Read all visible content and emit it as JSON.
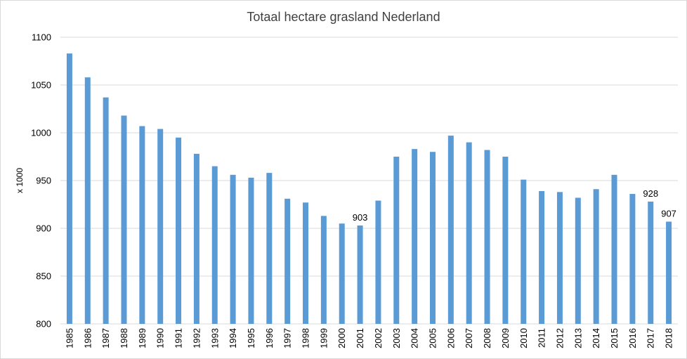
{
  "chart_data": {
    "type": "bar",
    "title": "Totaal hectare grasland Nederland",
    "xlabel": "",
    "ylabel": "x 1000",
    "ylim": [
      800,
      1100
    ],
    "yticks": [
      800,
      850,
      900,
      950,
      1000,
      1050,
      1100
    ],
    "grid": true,
    "bar_color": "#5b9bd5",
    "categories": [
      "1985",
      "1986",
      "1987",
      "1988",
      "1989",
      "1990",
      "1991",
      "1992",
      "1993",
      "1994",
      "1995",
      "1996",
      "1997",
      "1998",
      "1999",
      "2000",
      "2001",
      "2002",
      "2003",
      "2004",
      "2005",
      "2006",
      "2007",
      "2008",
      "2009",
      "2010",
      "2011",
      "2012",
      "2013",
      "2014",
      "2015",
      "2016",
      "2017",
      "2018"
    ],
    "values": [
      1083,
      1058,
      1037,
      1018,
      1007,
      1004,
      995,
      978,
      965,
      956,
      953,
      958,
      931,
      927,
      913,
      905,
      903,
      929,
      975,
      983,
      980,
      997,
      990,
      982,
      975,
      951,
      939,
      938,
      932,
      941,
      956,
      936,
      928,
      907
    ],
    "data_labels": [
      {
        "category": "2001",
        "text": "903"
      },
      {
        "category": "2017",
        "text": "928"
      },
      {
        "category": "2018",
        "text": "907"
      }
    ]
  }
}
